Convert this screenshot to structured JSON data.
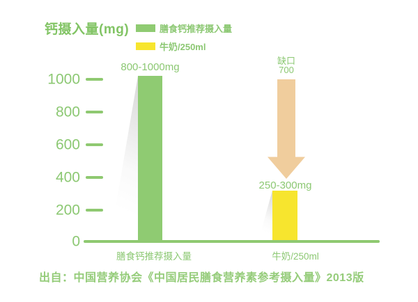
{
  "title": "钙摄入量(mg)",
  "legend": {
    "items": [
      {
        "label": "膳食钙推荐摄入量",
        "color": "#8FCB72"
      },
      {
        "label": "牛奶/250ml",
        "color": "#F7E52E"
      }
    ]
  },
  "yaxis": {
    "ticks": [
      "1000",
      "800",
      "600",
      "400",
      "200",
      "0"
    ]
  },
  "bars": [
    {
      "category": "膳食钙推荐摄入量",
      "value_label": "800-1000mg",
      "value": 1000,
      "color": "#8FCB72"
    },
    {
      "category": "牛奶/250ml",
      "value_label": "250-300mg",
      "value": 300,
      "color": "#F7E52E"
    }
  ],
  "gap_annotation": {
    "line1": "缺口",
    "line2": "700",
    "value": 700,
    "arrow_color": "#F0CD9D"
  },
  "source": "出自：中国营养协会《中国居民膳食营养素参考摄入量》2013版",
  "chart_data": {
    "type": "bar",
    "title": "钙摄入量(mg)",
    "categories": [
      "膳食钙推荐摄入量",
      "牛奶/250ml"
    ],
    "values": [
      1000,
      300
    ],
    "value_range_labels": [
      "800-1000mg",
      "250-300mg"
    ],
    "annotation": {
      "text": "缺口 700",
      "kind": "down-arrow",
      "from": 1000,
      "to": 300,
      "gap": 700
    },
    "ylim": [
      0,
      1000
    ],
    "yticks": [
      0,
      200,
      400,
      600,
      800,
      1000
    ],
    "grid": false,
    "legend_position": "top",
    "legend": [
      "膳食钙推荐摄入量",
      "牛奶/250ml"
    ],
    "xlabel": "",
    "ylabel": "钙摄入量(mg)",
    "source": "出自：中国营养协会《中国居民膳食营养素参考摄入量》2013版",
    "colors": {
      "recommended_bar": "#8FCB72",
      "milk_bar": "#F7E52E",
      "arrow": "#F0CD9D",
      "text": "#8CC873"
    }
  }
}
